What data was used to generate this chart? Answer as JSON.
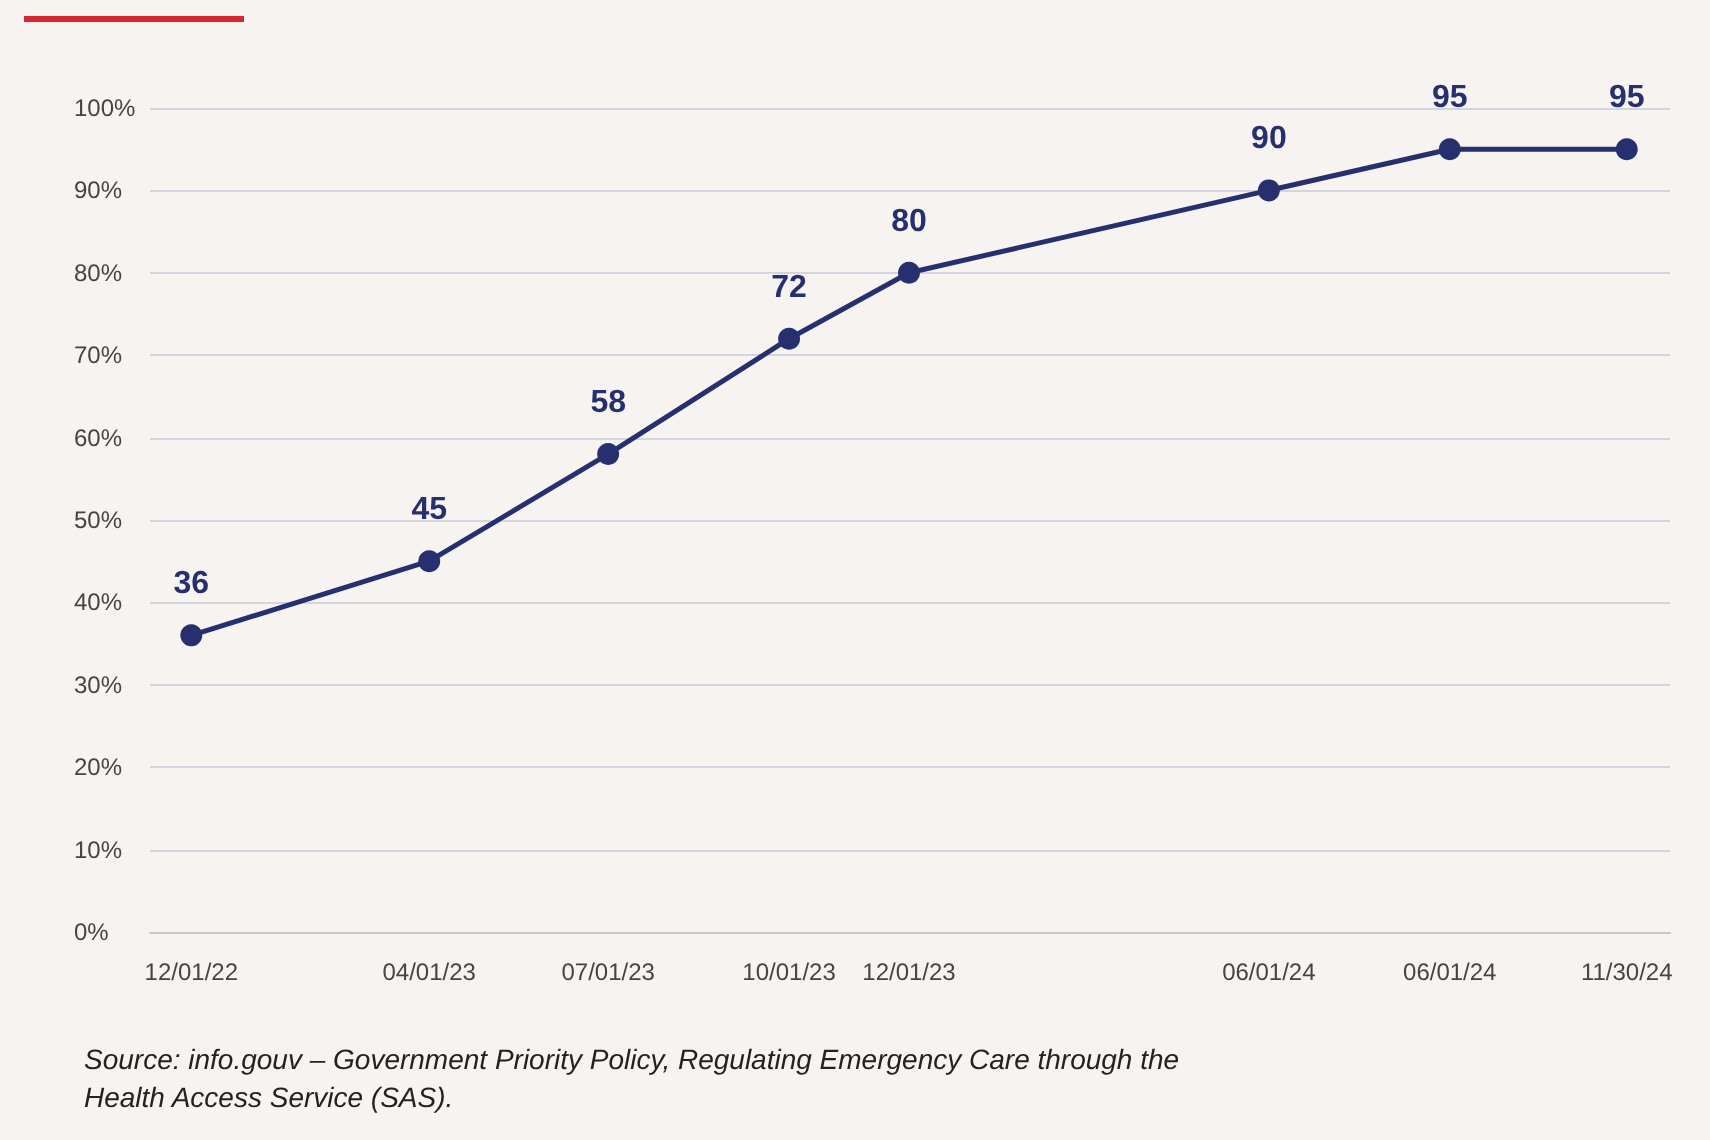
{
  "chart_data": {
    "type": "line",
    "x": [
      "2022-12-01",
      "2023-04-01",
      "2023-07-01",
      "2023-10-01",
      "2023-12-01",
      "2024-06-01",
      "2024-09-01",
      "2024-11-30"
    ],
    "series": [
      {
        "color": "#27306e",
        "values": [
          36,
          45,
          58,
          72,
          80,
          90,
          95,
          95
        ]
      }
    ],
    "xlim": [
      "2022-11-10",
      "2024-12-22"
    ],
    "xticks": [
      {
        "value": "2022-12-01",
        "label": "12/01/22"
      },
      {
        "value": "2023-04-01",
        "label": "04/01/23"
      },
      {
        "value": "2023-07-01",
        "label": "07/01/23"
      },
      {
        "value": "2023-10-01",
        "label": "10/01/23"
      },
      {
        "value": "2023-12-01",
        "label": "12/01/23"
      },
      {
        "value": "2024-06-01",
        "label": "06/01/24"
      },
      {
        "value": "2024-09-01",
        "label": "06/01/24"
      },
      {
        "value": "2024-11-30",
        "label": "11/30/24"
      }
    ],
    "ylim": [
      0,
      100
    ],
    "yticks": [
      {
        "value": 0,
        "label": "0%"
      },
      {
        "value": 10,
        "label": "10%"
      },
      {
        "value": 20,
        "label": "20%"
      },
      {
        "value": 30,
        "label": "30%"
      },
      {
        "value": 40,
        "label": "40%"
      },
      {
        "value": 50,
        "label": "50%"
      },
      {
        "value": 60,
        "label": "60%"
      },
      {
        "value": 70,
        "label": "70%"
      },
      {
        "value": 80,
        "label": "80%"
      },
      {
        "value": 90,
        "label": "90%"
      },
      {
        "value": 100,
        "label": "100%"
      }
    ],
    "grid": "y",
    "marker": "circle",
    "line_style": "solid",
    "data_labels": true,
    "annotations": [
      "Source: info.gouv – Government Priority Policy, Regulating Emergency Care through the Health Access Service (SAS)."
    ]
  }
}
